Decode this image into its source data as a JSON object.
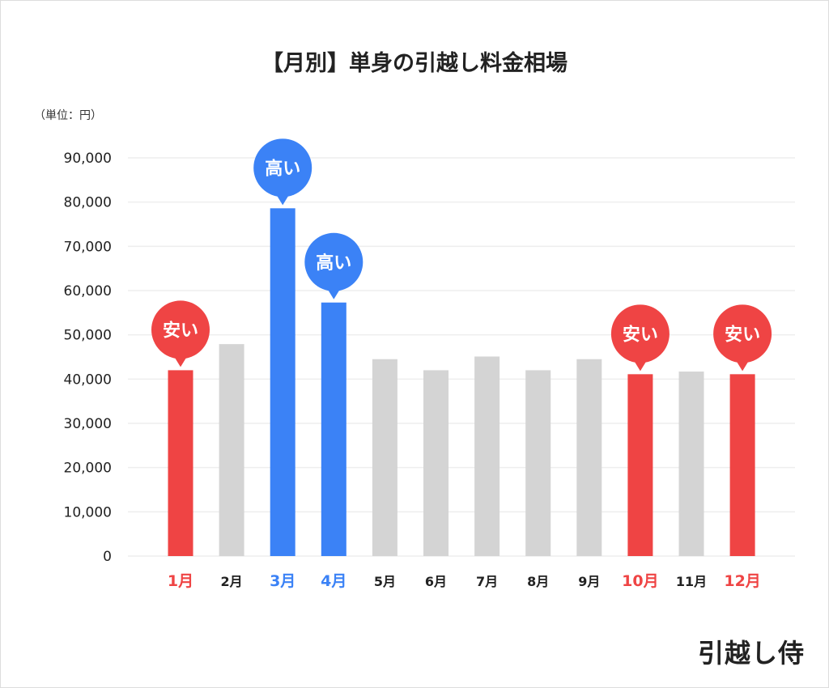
{
  "chart_data": {
    "type": "bar",
    "title": "【月別】単身の引越し料金相場",
    "unit_label": "（単位：円）",
    "categories": [
      "1月",
      "2月",
      "3月",
      "4月",
      "5月",
      "6月",
      "7月",
      "8月",
      "9月",
      "10月",
      "11月",
      "12月"
    ],
    "values": [
      42000,
      47900,
      78600,
      57300,
      44500,
      42000,
      45100,
      42000,
      44500,
      41100,
      41700,
      41100
    ],
    "highlight": [
      "low",
      null,
      "high",
      "high",
      null,
      null,
      null,
      null,
      null,
      "low",
      null,
      "low"
    ],
    "callout_labels": {
      "low": "安い",
      "high": "高い"
    },
    "ylim": [
      0,
      90000
    ],
    "yticks": [
      "0",
      "10,000",
      "20,000",
      "30,000",
      "40,000",
      "50,000",
      "60,000",
      "70,000",
      "80,000",
      "90,000"
    ],
    "grid": true,
    "colors": {
      "low": "#ef4444",
      "high": "#3b82f6",
      "normal": "#d4d4d4",
      "grid": "#eeeeee"
    }
  },
  "logo_text": "引越し侍"
}
